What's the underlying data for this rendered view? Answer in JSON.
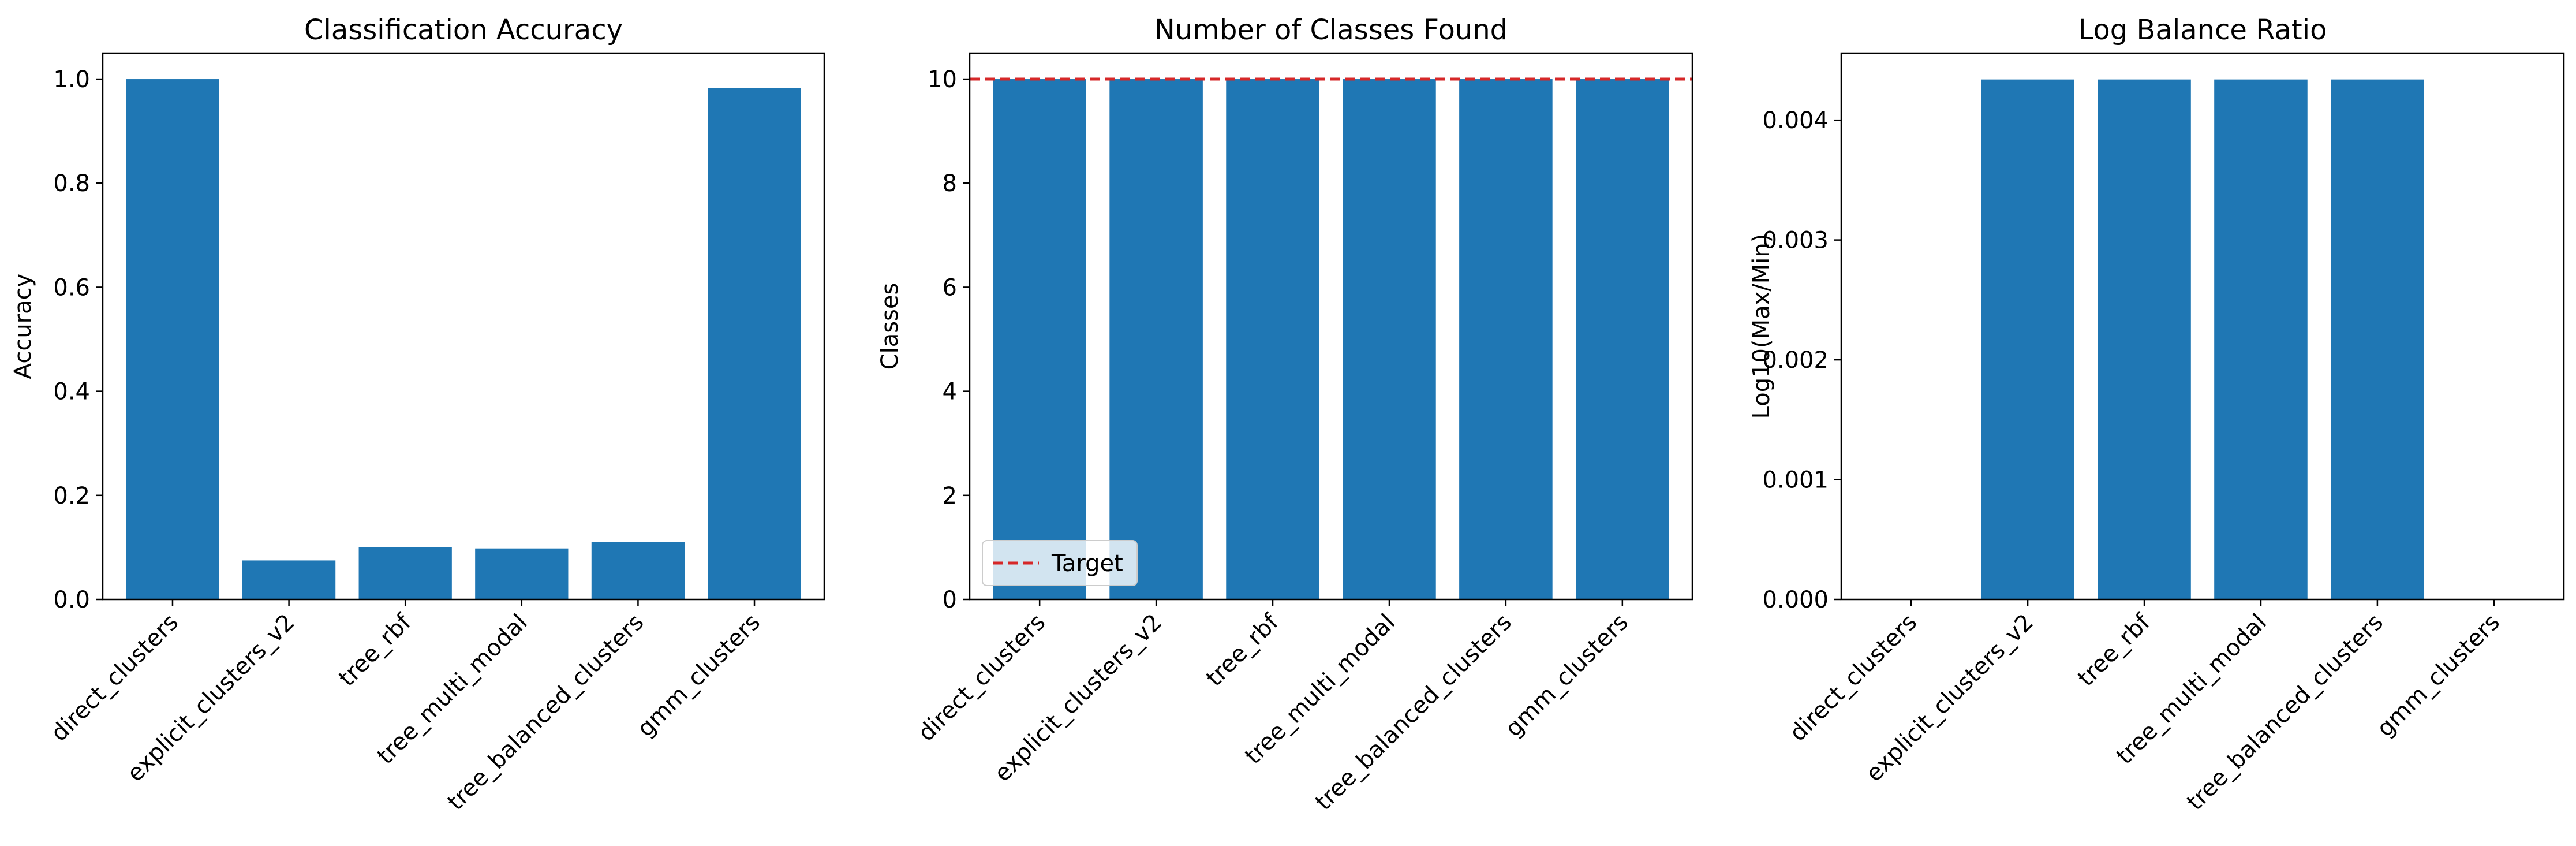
{
  "chart_data": [
    {
      "type": "bar",
      "title": "Classification Accuracy",
      "xlabel": "",
      "ylabel": "Accuracy",
      "categories": [
        "direct_clusters",
        "explicit_clusters_v2",
        "tree_rbf",
        "tree_multi_modal",
        "tree_balanced_clusters",
        "gmm_clusters"
      ],
      "values": [
        1.0,
        0.075,
        0.1,
        0.098,
        0.11,
        0.983
      ],
      "ylim": [
        0,
        1.05
      ],
      "yticks": [
        0.0,
        0.2,
        0.4,
        0.6,
        0.8,
        1.0
      ],
      "ytick_labels": [
        "0.0",
        "0.2",
        "0.4",
        "0.6",
        "0.8",
        "1.0"
      ],
      "bar_color": "#1f77b4",
      "grid": false
    },
    {
      "type": "bar",
      "title": "Number of Classes Found",
      "xlabel": "",
      "ylabel": "Classes",
      "categories": [
        "direct_clusters",
        "explicit_clusters_v2",
        "tree_rbf",
        "tree_multi_modal",
        "tree_balanced_clusters",
        "gmm_clusters"
      ],
      "values": [
        10,
        10,
        10,
        10,
        10,
        10
      ],
      "ylim": [
        0,
        10.5
      ],
      "yticks": [
        0,
        2,
        4,
        6,
        8,
        10
      ],
      "ytick_labels": [
        "0",
        "2",
        "4",
        "6",
        "8",
        "10"
      ],
      "bar_color": "#1f77b4",
      "reference_line": {
        "y": 10,
        "label": "Target",
        "color": "#d62728",
        "style": "dashed"
      },
      "legend": {
        "placement": "lower-left",
        "entries": [
          "Target"
        ]
      },
      "grid": false
    },
    {
      "type": "bar",
      "title": "Log Balance Ratio",
      "xlabel": "",
      "ylabel": "Log10(Max/Min)",
      "categories": [
        "direct_clusters",
        "explicit_clusters_v2",
        "tree_rbf",
        "tree_multi_modal",
        "tree_balanced_clusters",
        "gmm_clusters"
      ],
      "values": [
        0.0,
        0.00434,
        0.00434,
        0.00434,
        0.00434,
        0.0
      ],
      "ylim": [
        0,
        0.00456
      ],
      "yticks": [
        0.0,
        0.001,
        0.002,
        0.003,
        0.004
      ],
      "ytick_labels": [
        "0.000",
        "0.001",
        "0.002",
        "0.003",
        "0.004"
      ],
      "bar_color": "#1f77b4",
      "grid": false
    }
  ]
}
